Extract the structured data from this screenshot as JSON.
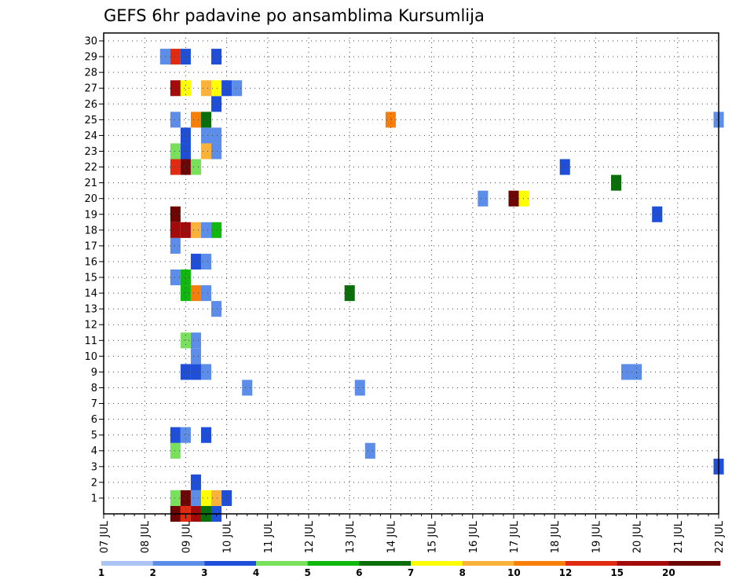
{
  "chart_data": {
    "type": "heatmap",
    "title": "GEFS 6hr padavine po ansamblima Kursumlija",
    "xlabel": "",
    "ylabel": "",
    "x_ticks": [
      "07 JUL",
      "08 JUL",
      "09 JUL",
      "10 JUL",
      "11 JUL",
      "12 JUL",
      "13 JUL",
      "14 JUL",
      "15 JUL",
      "16 JUL",
      "17 JUL",
      "18 JUL",
      "19 JUL",
      "20 JUL",
      "21 JUL",
      "22 JUL"
    ],
    "y_ticks": [
      "1",
      "2",
      "3",
      "4",
      "5",
      "6",
      "7",
      "8",
      "9",
      "10",
      "11",
      "12",
      "13",
      "14",
      "15",
      "16",
      "17",
      "18",
      "19",
      "20",
      "21",
      "22",
      "23",
      "24",
      "25",
      "26",
      "27",
      "28",
      "29",
      "30"
    ],
    "x_range_days": [
      0,
      15
    ],
    "y_range": [
      0,
      30
    ],
    "grid": true,
    "legend": {
      "placement": "bottom",
      "labels": [
        "1",
        "2",
        "3",
        "4",
        "5",
        "6",
        "7",
        "8",
        "10",
        "12",
        "15",
        "20"
      ],
      "colors": [
        "#a9c4f5",
        "#5c8de8",
        "#1f4fd8",
        "#78e05a",
        "#10b80e",
        "#0a6e0a",
        "#ffff00",
        "#fbb23a",
        "#f77f07",
        "#e02b10",
        "#a30a0a",
        "#6e0505"
      ]
    },
    "cells": [
      {
        "day": 1.75,
        "member": 0,
        "cls": 11
      },
      {
        "day": 2.0,
        "member": 0,
        "cls": 9
      },
      {
        "day": 2.25,
        "member": 0,
        "cls": 10
      },
      {
        "day": 2.5,
        "member": 0,
        "cls": 5
      },
      {
        "day": 2.75,
        "member": 0,
        "cls": 2
      },
      {
        "day": 1.75,
        "member": 1,
        "cls": 3
      },
      {
        "day": 2.0,
        "member": 1,
        "cls": 11
      },
      {
        "day": 2.25,
        "member": 1,
        "cls": 1
      },
      {
        "day": 2.5,
        "member": 1,
        "cls": 6
      },
      {
        "day": 2.75,
        "member": 1,
        "cls": 7
      },
      {
        "day": 3.0,
        "member": 1,
        "cls": 2
      },
      {
        "day": 2.25,
        "member": 2,
        "cls": 2
      },
      {
        "day": 15.0,
        "member": 3,
        "cls": 2
      },
      {
        "day": 1.75,
        "member": 4,
        "cls": 3
      },
      {
        "day": 6.5,
        "member": 4,
        "cls": 1
      },
      {
        "day": 1.75,
        "member": 5,
        "cls": 2
      },
      {
        "day": 2.0,
        "member": 5,
        "cls": 1
      },
      {
        "day": 2.5,
        "member": 5,
        "cls": 2
      },
      {
        "day": 3.5,
        "member": 8,
        "cls": 1
      },
      {
        "day": 6.25,
        "member": 8,
        "cls": 1
      },
      {
        "day": 2.0,
        "member": 9,
        "cls": 2
      },
      {
        "day": 2.25,
        "member": 9,
        "cls": 2
      },
      {
        "day": 2.5,
        "member": 9,
        "cls": 1
      },
      {
        "day": 12.75,
        "member": 9,
        "cls": 1
      },
      {
        "day": 13.0,
        "member": 9,
        "cls": 1
      },
      {
        "day": 2.25,
        "member": 10,
        "cls": 1
      },
      {
        "day": 2.0,
        "member": 11,
        "cls": 3
      },
      {
        "day": 2.25,
        "member": 11,
        "cls": 1
      },
      {
        "day": 2.75,
        "member": 13,
        "cls": 1
      },
      {
        "day": 2.0,
        "member": 14,
        "cls": 4
      },
      {
        "day": 2.25,
        "member": 14,
        "cls": 8
      },
      {
        "day": 2.5,
        "member": 14,
        "cls": 1
      },
      {
        "day": 6.0,
        "member": 14,
        "cls": 5
      },
      {
        "day": 1.75,
        "member": 15,
        "cls": 1
      },
      {
        "day": 2.0,
        "member": 15,
        "cls": 4
      },
      {
        "day": 2.25,
        "member": 16,
        "cls": 2
      },
      {
        "day": 2.5,
        "member": 16,
        "cls": 1
      },
      {
        "day": 1.75,
        "member": 17,
        "cls": 1
      },
      {
        "day": 1.75,
        "member": 18,
        "cls": 10
      },
      {
        "day": 2.0,
        "member": 18,
        "cls": 10
      },
      {
        "day": 2.25,
        "member": 18,
        "cls": 7
      },
      {
        "day": 2.5,
        "member": 18,
        "cls": 1
      },
      {
        "day": 2.75,
        "member": 18,
        "cls": 4
      },
      {
        "day": 1.75,
        "member": 19,
        "cls": 11
      },
      {
        "day": 13.5,
        "member": 19,
        "cls": 2
      },
      {
        "day": 9.25,
        "member": 20,
        "cls": 1
      },
      {
        "day": 10.0,
        "member": 20,
        "cls": 11
      },
      {
        "day": 10.25,
        "member": 20,
        "cls": 6
      },
      {
        "day": 12.5,
        "member": 21,
        "cls": 5
      },
      {
        "day": 1.75,
        "member": 22,
        "cls": 9
      },
      {
        "day": 2.0,
        "member": 22,
        "cls": 11
      },
      {
        "day": 2.25,
        "member": 22,
        "cls": 3
      },
      {
        "day": 11.25,
        "member": 22,
        "cls": 2
      },
      {
        "day": 1.75,
        "member": 23,
        "cls": 3
      },
      {
        "day": 2.0,
        "member": 23,
        "cls": 2
      },
      {
        "day": 2.5,
        "member": 23,
        "cls": 7
      },
      {
        "day": 2.75,
        "member": 23,
        "cls": 1
      },
      {
        "day": 2.0,
        "member": 24,
        "cls": 2
      },
      {
        "day": 2.5,
        "member": 24,
        "cls": 1
      },
      {
        "day": 2.75,
        "member": 24,
        "cls": 1
      },
      {
        "day": 1.75,
        "member": 25,
        "cls": 1
      },
      {
        "day": 2.25,
        "member": 25,
        "cls": 8
      },
      {
        "day": 2.5,
        "member": 25,
        "cls": 5
      },
      {
        "day": 7.0,
        "member": 25,
        "cls": 8
      },
      {
        "day": 15.0,
        "member": 25,
        "cls": 1
      },
      {
        "day": 2.75,
        "member": 26,
        "cls": 2
      },
      {
        "day": 1.75,
        "member": 27,
        "cls": 10
      },
      {
        "day": 2.0,
        "member": 27,
        "cls": 6
      },
      {
        "day": 2.5,
        "member": 27,
        "cls": 7
      },
      {
        "day": 2.75,
        "member": 27,
        "cls": 6
      },
      {
        "day": 3.0,
        "member": 27,
        "cls": 2
      },
      {
        "day": 3.25,
        "member": 27,
        "cls": 1
      },
      {
        "day": 1.5,
        "member": 29,
        "cls": 1
      },
      {
        "day": 1.75,
        "member": 29,
        "cls": 9
      },
      {
        "day": 2.0,
        "member": 29,
        "cls": 2
      },
      {
        "day": 2.75,
        "member": 29,
        "cls": 2
      }
    ]
  }
}
